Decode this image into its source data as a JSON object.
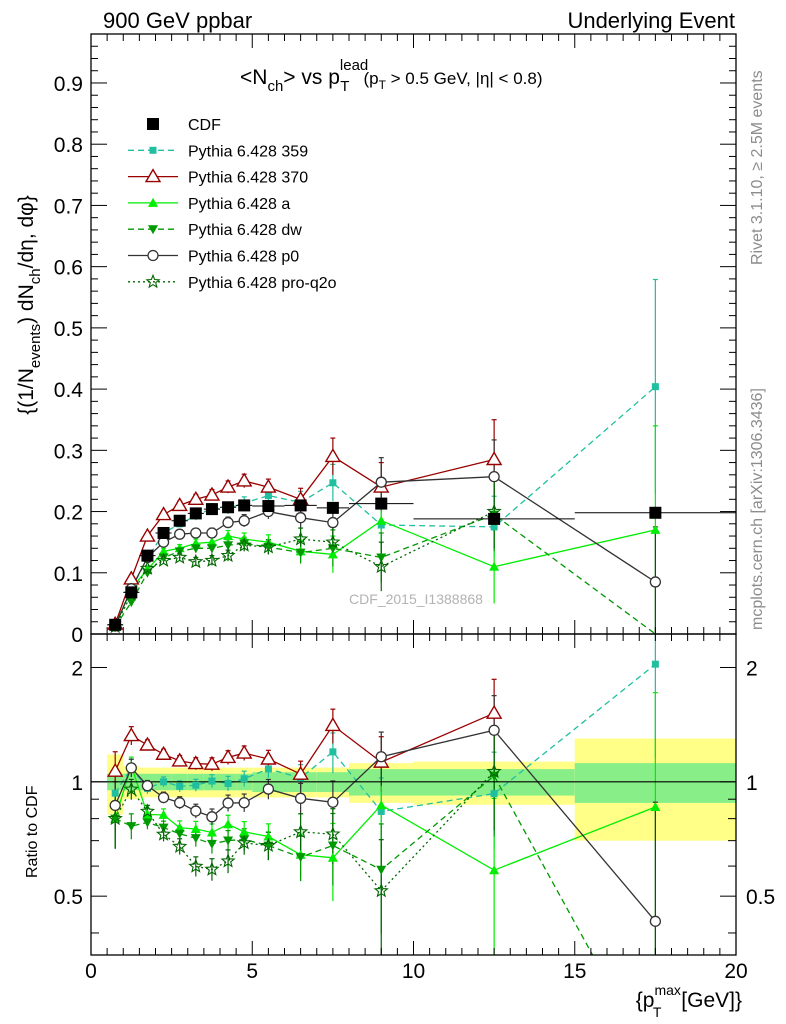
{
  "header": {
    "left": "900 GeV ppbar",
    "right": "Underlying Event"
  },
  "side_labels": {
    "rivet": "Rivet 3.1.10, ≥ 2.5M events",
    "mcplots": "mcplots.cern.ch [arXiv:1306.3436]"
  },
  "watermark": "CDF_2015_I1388868",
  "plot_title": {
    "main": "<N",
    "main_sub": "ch",
    "main_rest": "> vs p",
    "main_sup": "lead",
    "main_sub2": "T",
    "cut_a": "(p",
    "cut_sub": "T",
    "cut_b": " > 0.5 GeV, |η| < 0.8)"
  },
  "ylabel_main": {
    "a": "{(1/N",
    "a_sub": "events",
    "b": ") dN",
    "b_sub": "ch",
    "c": "/dη, dφ}"
  },
  "ylabel_ratio": "Ratio to CDF",
  "xlabel": {
    "a": "{p",
    "sup": "max",
    "sub": "T",
    "b": " [GeV]}"
  },
  "chart_data": {
    "type": "scatter",
    "x_range": [
      0,
      20
    ],
    "main_ylim": [
      0,
      0.98
    ],
    "ratio_ylim": [
      0.35,
      2.45
    ],
    "ratio_log": true,
    "x_ticks": [
      "0",
      "5",
      "10",
      "15",
      "20"
    ],
    "main_y_ticks": [
      "0",
      "0.1",
      "0.2",
      "0.3",
      "0.4",
      "0.5",
      "0.6",
      "0.7",
      "0.8",
      "0.9"
    ],
    "ratio_y_ticks": [
      "0.5",
      "1",
      "2"
    ],
    "data_series": {
      "name": "CDF",
      "color": "#000000",
      "marker": "square",
      "x": [
        0.75,
        1.25,
        1.75,
        2.25,
        2.75,
        3.25,
        3.75,
        4.25,
        4.75,
        5.5,
        6.5,
        7.5,
        9.0,
        12.5,
        17.5
      ],
      "xerr": [
        0.25,
        0.25,
        0.25,
        0.25,
        0.25,
        0.25,
        0.25,
        0.25,
        0.25,
        0.5,
        0.5,
        0.5,
        1.0,
        2.5,
        2.5
      ],
      "y": [
        0.015,
        0.068,
        0.128,
        0.165,
        0.185,
        0.197,
        0.204,
        0.207,
        0.21,
        0.209,
        0.21,
        0.206,
        0.213,
        0.188,
        0.198
      ],
      "band_inner": [
        0.05,
        0.05,
        0.05,
        0.05,
        0.05,
        0.05,
        0.05,
        0.05,
        0.05,
        0.06,
        0.06,
        0.06,
        0.08,
        0.08,
        0.12
      ],
      "band_outer": [
        0.18,
        0.1,
        0.09,
        0.09,
        0.09,
        0.09,
        0.09,
        0.09,
        0.09,
        0.09,
        0.09,
        0.09,
        0.12,
        0.13,
        0.3
      ]
    },
    "series": [
      {
        "name": "Pythia 6.428 359",
        "color": "#1fbf9f",
        "marker": "small-square",
        "dash": "6,4",
        "x": [
          0.75,
          1.25,
          1.75,
          2.25,
          2.75,
          3.25,
          3.75,
          4.25,
          4.75,
          5.5,
          6.5,
          7.5,
          9.0,
          12.5,
          17.5
        ],
        "y": [
          0.014,
          0.074,
          0.123,
          0.165,
          0.18,
          0.193,
          0.205,
          0.205,
          0.214,
          0.226,
          0.215,
          0.247,
          0.178,
          0.175,
          0.404
        ],
        "yerr": [
          0.002,
          0.004,
          0.004,
          0.005,
          0.006,
          0.007,
          0.008,
          0.009,
          0.01,
          0.012,
          0.018,
          0.03,
          0.04,
          0.05,
          0.175
        ]
      },
      {
        "name": "Pythia 6.428 370",
        "color": "#990000",
        "marker": "open-triangle",
        "dash": "",
        "x": [
          0.75,
          1.25,
          1.75,
          2.25,
          2.75,
          3.25,
          3.75,
          4.25,
          4.75,
          5.5,
          6.5,
          7.5,
          9.0,
          12.5
        ],
        "y": [
          0.016,
          0.09,
          0.16,
          0.195,
          0.21,
          0.22,
          0.227,
          0.24,
          0.25,
          0.24,
          0.22,
          0.29,
          0.24,
          0.285
        ],
        "yerr": [
          0.002,
          0.005,
          0.005,
          0.006,
          0.007,
          0.008,
          0.009,
          0.01,
          0.011,
          0.013,
          0.018,
          0.03,
          0.04,
          0.065
        ]
      },
      {
        "name": "Pythia 6.428 a",
        "color": "#00ee00",
        "marker": "triangle",
        "dash": "",
        "x": [
          0.75,
          1.25,
          1.75,
          2.25,
          2.75,
          3.25,
          3.75,
          4.25,
          4.75,
          5.5,
          6.5,
          7.5,
          9.0,
          12.5,
          17.5
        ],
        "y": [
          0.012,
          0.075,
          0.105,
          0.135,
          0.14,
          0.148,
          0.15,
          0.16,
          0.155,
          0.15,
          0.135,
          0.13,
          0.185,
          0.11,
          0.17
        ],
        "yerr": [
          0.002,
          0.004,
          0.004,
          0.005,
          0.006,
          0.007,
          0.008,
          0.009,
          0.01,
          0.012,
          0.018,
          0.03,
          0.05,
          0.06,
          0.17
        ]
      },
      {
        "name": "Pythia 6.428 dw",
        "color": "#009900",
        "marker": "down-triangle",
        "dash": "6,4",
        "x": [
          0.75,
          1.25,
          1.75,
          2.25,
          2.75,
          3.25,
          3.75,
          4.25,
          4.75,
          5.5,
          6.5,
          7.5,
          9.0,
          12.5,
          17.5
        ],
        "y": [
          0.012,
          0.052,
          0.1,
          0.125,
          0.135,
          0.14,
          0.14,
          0.145,
          0.148,
          0.142,
          0.133,
          0.14,
          0.125,
          0.195,
          0.0
        ],
        "yerr": [
          0.002,
          0.004,
          0.004,
          0.005,
          0.006,
          0.007,
          0.008,
          0.009,
          0.01,
          0.012,
          0.018,
          0.03,
          0.04,
          0.06,
          0.0
        ]
      },
      {
        "name": "Pythia 6.428 p0",
        "color": "#333333",
        "marker": "open-circle",
        "dash": "",
        "x": [
          0.75,
          1.25,
          1.75,
          2.25,
          2.75,
          3.25,
          3.75,
          4.25,
          4.75,
          5.5,
          6.5,
          7.5,
          9.0,
          12.5,
          17.5
        ],
        "y": [
          0.013,
          0.074,
          0.125,
          0.15,
          0.163,
          0.165,
          0.165,
          0.182,
          0.185,
          0.2,
          0.19,
          0.182,
          0.248,
          0.257,
          0.085
        ],
        "yerr": [
          0.002,
          0.004,
          0.004,
          0.005,
          0.006,
          0.007,
          0.008,
          0.009,
          0.01,
          0.012,
          0.018,
          0.025,
          0.04,
          0.06,
          0.09
        ]
      },
      {
        "name": "Pythia 6.428 pro-q2o",
        "color": "#006600",
        "marker": "open-star",
        "dash": "2,3",
        "x": [
          0.75,
          1.25,
          1.75,
          2.25,
          2.75,
          3.25,
          3.75,
          4.25,
          4.75,
          5.5,
          6.5,
          7.5,
          9.0,
          12.5
        ],
        "y": [
          0.012,
          0.065,
          0.107,
          0.12,
          0.125,
          0.118,
          0.12,
          0.128,
          0.145,
          0.142,
          0.155,
          0.15,
          0.11,
          0.2
        ],
        "yerr": [
          0.002,
          0.004,
          0.004,
          0.005,
          0.006,
          0.007,
          0.008,
          0.009,
          0.01,
          0.012,
          0.018,
          0.025,
          0.04,
          0.06
        ]
      }
    ]
  }
}
